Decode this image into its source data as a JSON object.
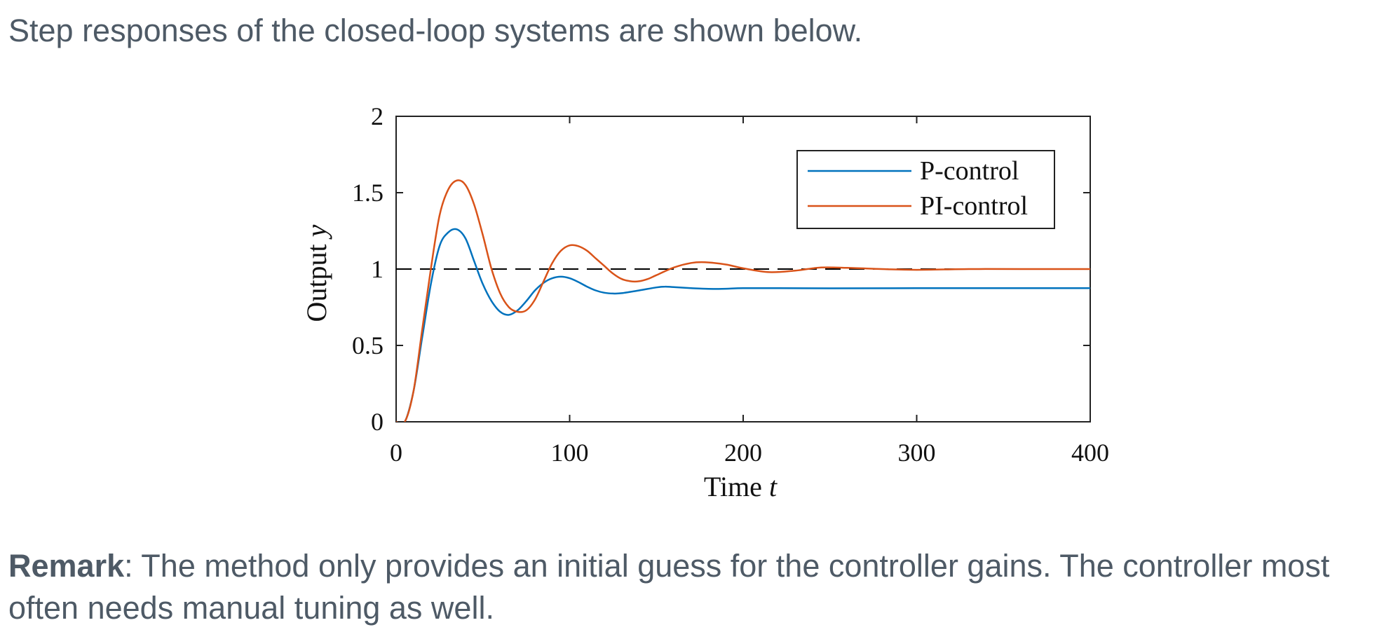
{
  "intro_text": "Step responses of the closed-loop systems are shown below.",
  "remark": {
    "label": "Remark",
    "text": ": The method only provides an initial guess for the controller gains. The controller most often needs manual tuning as well."
  },
  "chart_data": {
    "type": "line",
    "title": "",
    "xlabel": "Time",
    "xlabel_var": "t",
    "ylabel": "Output",
    "ylabel_var": "y",
    "xlim": [
      0,
      400
    ],
    "ylim": [
      0,
      2
    ],
    "xticks": [
      0,
      100,
      200,
      300,
      400
    ],
    "xtick_labels": [
      "0",
      "100",
      "200",
      "300",
      "400"
    ],
    "yticks": [
      0,
      0.5,
      1,
      1.5,
      2
    ],
    "ytick_labels": [
      "0",
      "0.5",
      "1",
      "1.5",
      "2"
    ],
    "grid": false,
    "legend_position": "top-right",
    "reference": {
      "y": 1,
      "style": "dashed",
      "color": "#000000"
    },
    "series": [
      {
        "name": "P-control",
        "color": "#0072BD",
        "x": [
          0,
          5,
          10,
          15,
          20,
          25,
          30,
          35,
          40,
          45,
          50,
          55,
          60,
          65,
          70,
          75,
          80,
          85,
          90,
          95,
          100,
          105,
          110,
          115,
          120,
          125,
          130,
          140,
          150,
          155,
          160,
          170,
          180,
          190,
          200,
          220,
          250,
          300,
          350,
          400
        ],
        "values": [
          0,
          0,
          0.2,
          0.55,
          0.9,
          1.15,
          1.24,
          1.26,
          1.2,
          1.05,
          0.9,
          0.79,
          0.72,
          0.7,
          0.73,
          0.79,
          0.86,
          0.91,
          0.94,
          0.95,
          0.94,
          0.915,
          0.885,
          0.86,
          0.845,
          0.84,
          0.842,
          0.86,
          0.88,
          0.885,
          0.882,
          0.875,
          0.87,
          0.871,
          0.875,
          0.875,
          0.874,
          0.875,
          0.875,
          0.875
        ]
      },
      {
        "name": "PI-control",
        "color": "#D95319",
        "x": [
          0,
          5,
          10,
          15,
          20,
          25,
          30,
          35,
          40,
          45,
          50,
          55,
          60,
          65,
          70,
          75,
          80,
          85,
          90,
          95,
          100,
          105,
          110,
          115,
          120,
          125,
          130,
          135,
          140,
          145,
          150,
          160,
          170,
          178,
          190,
          200,
          215,
          230,
          245,
          260,
          280,
          300,
          330,
          360,
          400
        ],
        "values": [
          0,
          0,
          0.2,
          0.6,
          1.0,
          1.35,
          1.52,
          1.58,
          1.55,
          1.42,
          1.22,
          1.0,
          0.84,
          0.75,
          0.72,
          0.73,
          0.8,
          0.92,
          1.04,
          1.12,
          1.155,
          1.15,
          1.12,
          1.07,
          1.02,
          0.97,
          0.935,
          0.92,
          0.92,
          0.935,
          0.96,
          1.01,
          1.04,
          1.045,
          1.03,
          1.005,
          0.98,
          0.99,
          1.01,
          1.008,
          1.0,
          0.995,
          1.0,
          1.0,
          1.0
        ]
      }
    ]
  }
}
